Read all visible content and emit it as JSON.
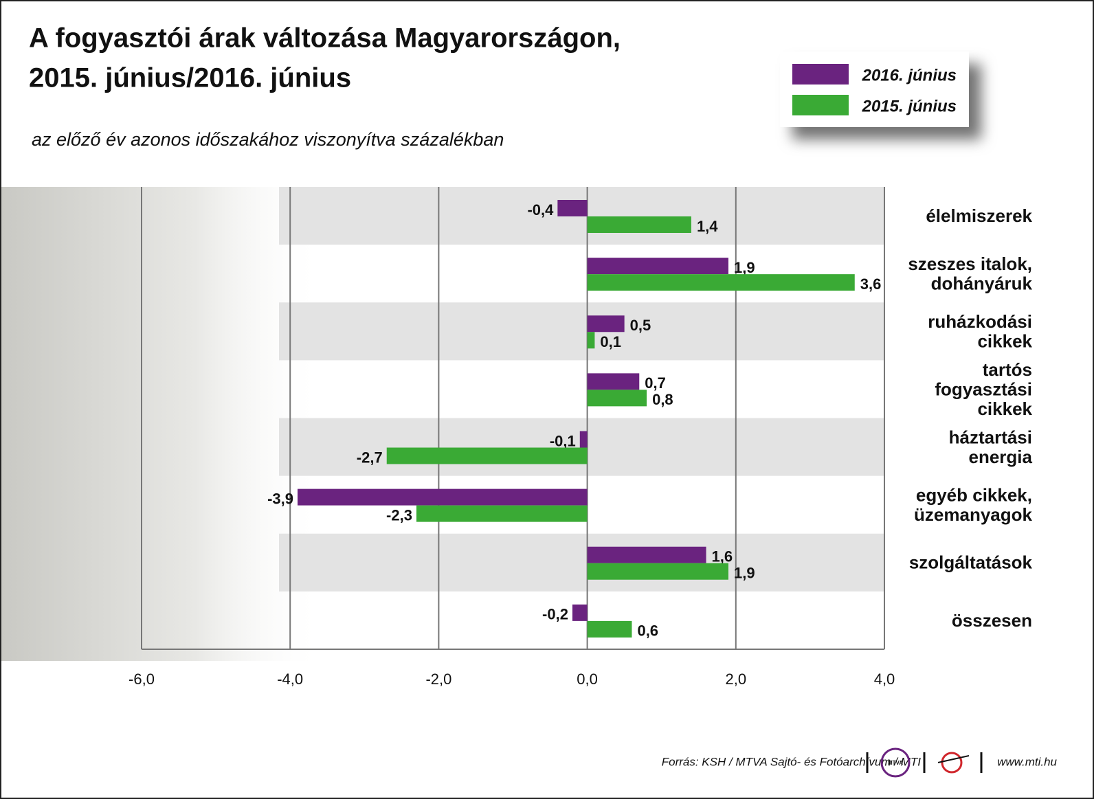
{
  "chart_data": {
    "type": "hbar",
    "title": [
      "A fogyasztói árak változása Magyarországon,",
      "2015. június/2016. június"
    ],
    "subtitle": "az előző év azonos időszakához viszonyítva százalékban",
    "categories": [
      "élelmiszerek",
      "szeszes italok,\ndohányáruk",
      "ruházkodási\ncikkek",
      "tartós\nfogyasztási\ncikkek",
      "háztartási\nenergia",
      "egyéb cikkek,\nüzemanyagok",
      "szolgáltatások",
      "összesen"
    ],
    "series": [
      {
        "name": "2016. június",
        "color": "#6a237f",
        "values": [
          -0.4,
          1.9,
          0.5,
          0.7,
          -0.1,
          -3.9,
          1.6,
          -0.2
        ],
        "value_labels": [
          "-0,4",
          "1,9",
          "0,5",
          "0,7",
          "-0,1",
          "-3,9",
          "1,6",
          "-0,2"
        ]
      },
      {
        "name": "2015. június",
        "color": "#3aaa35",
        "values": [
          1.4,
          3.6,
          0.1,
          0.8,
          -2.7,
          -2.3,
          1.9,
          0.6
        ],
        "value_labels": [
          "1,4",
          "3,6",
          "0,1",
          "0,8",
          "-2,7",
          "-2,3",
          "1,9",
          "0,6"
        ]
      }
    ],
    "xlim": [
      -6,
      4
    ],
    "xticks": [
      {
        "value": -6,
        "label": "-6,0"
      },
      {
        "value": -4,
        "label": "-4,0"
      },
      {
        "value": -2,
        "label": "-2,0"
      },
      {
        "value": 0,
        "label": "0,0"
      },
      {
        "value": 2,
        "label": "2,0"
      },
      {
        "value": 4,
        "label": "4,0"
      }
    ],
    "grid": true,
    "source": "Forrás: KSH / MTVA Sajtó- és Fotóarchívum / MTI",
    "logo_text": "MTVA",
    "website": "www.mti.hu"
  }
}
